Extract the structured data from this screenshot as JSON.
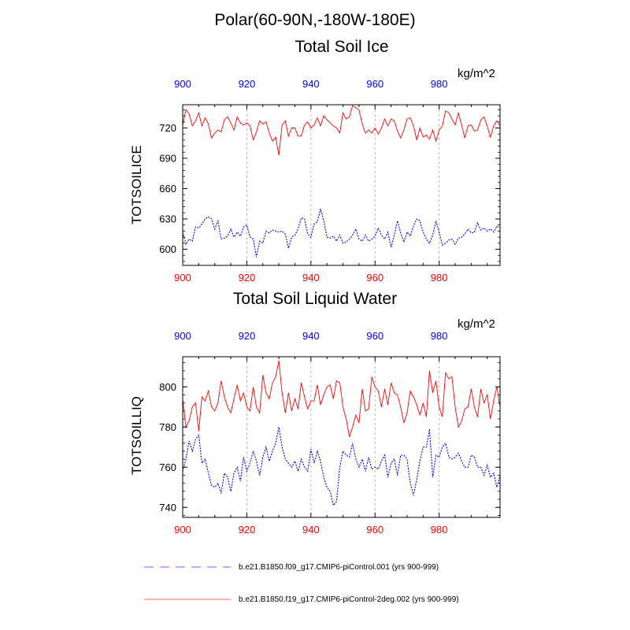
{
  "figure_title": "Polar(60-90N,-180W-180E)",
  "legend": [
    {
      "label": "b.e21.B1850.f09_g17.CMIP6-piControl.001 (yrs 900-999)",
      "color": "#0000ff",
      "style": "dashed"
    },
    {
      "label": "b.e21.B1850.f19_g17.CMIP6-piControl-2deg.002 (yrs 900-999)",
      "color": "#ff0000",
      "style": "solid"
    }
  ],
  "chart_data": [
    {
      "type": "line",
      "title": "Total Soil Ice",
      "units": "kg/m^2",
      "ylabel": "TOTSOILICE",
      "xlabel": "",
      "xlim": [
        900,
        999
      ],
      "ylim": [
        584,
        743
      ],
      "x_ticks": [
        "900",
        "920",
        "940",
        "960",
        "980"
      ],
      "y_ticks": [
        "600",
        "630",
        "660",
        "690",
        "720"
      ],
      "x_tick_color_bottom": "#ff0000",
      "x_tick_color_top": "#0000ff",
      "x_start": 900,
      "series": [
        {
          "name": "b.e21.B1850.f09_g17.CMIP6-piControl.001",
          "color": "#0000ff",
          "style": "dashed",
          "values": [
            617,
            605,
            610,
            608,
            622,
            621,
            625,
            630,
            632,
            630,
            620,
            628,
            610,
            611,
            613,
            620,
            612,
            617,
            613,
            622,
            624,
            612,
            610,
            592,
            608,
            606,
            618,
            616,
            619,
            618,
            617,
            618,
            615,
            601,
            612,
            614,
            620,
            631,
            630,
            615,
            612,
            625,
            627,
            640,
            628,
            612,
            611,
            613,
            608,
            614,
            606,
            607,
            610,
            614,
            620,
            610,
            608,
            614,
            608,
            610,
            613,
            621,
            614,
            610,
            617,
            602,
            614,
            628,
            616,
            607,
            617,
            613,
            623,
            630,
            628,
            617,
            610,
            606,
            614,
            628,
            617,
            604,
            606,
            609,
            610,
            605,
            611,
            612,
            615,
            620,
            616,
            617,
            626,
            619,
            621,
            618,
            620,
            617,
            623,
            621
          ]
        },
        {
          "name": "b.e21.B1850.f19_g17.CMIP6-piControl-2deg.002",
          "color": "#ff0000",
          "style": "solid",
          "values": [
            723,
            738,
            734,
            722,
            727,
            735,
            722,
            730,
            724,
            710,
            715,
            718,
            716,
            728,
            731,
            725,
            718,
            731,
            725,
            723,
            725,
            722,
            708,
            716,
            727,
            724,
            726,
            715,
            707,
            711,
            693,
            723,
            727,
            712,
            720,
            720,
            712,
            712,
            723,
            726,
            720,
            723,
            730,
            722,
            732,
            728,
            725,
            722,
            720,
            715,
            735,
            729,
            731,
            742,
            740,
            738,
            724,
            715,
            718,
            715,
            720,
            714,
            720,
            729,
            722,
            729,
            727,
            717,
            710,
            718,
            729,
            730,
            722,
            708,
            720,
            711,
            713,
            709,
            718,
            707,
            718,
            722,
            737,
            735,
            729,
            723,
            735,
            723,
            710,
            722,
            723,
            717,
            718,
            728,
            731,
            722,
            711,
            722,
            727,
            722
          ]
        }
      ]
    },
    {
      "type": "line",
      "title": "Total Soil Liquid Water",
      "units": "kg/m^2",
      "ylabel": "TOTSOILLIQ",
      "xlabel": "",
      "xlim": [
        900,
        999
      ],
      "ylim": [
        735,
        815
      ],
      "x_ticks": [
        "900",
        "920",
        "940",
        "960",
        "980"
      ],
      "y_ticks": [
        "740",
        "760",
        "780",
        "800"
      ],
      "x_tick_color_bottom": "#ff0000",
      "x_tick_color_top": "#0000ff",
      "x_start": 900,
      "series": [
        {
          "name": "b.e21.B1850.f09_g17.CMIP6-piControl.001",
          "color": "#0000ff",
          "style": "dashed",
          "values": [
            758,
            764,
            773,
            768,
            774,
            776,
            762,
            764,
            757,
            751,
            750,
            752,
            747,
            757,
            755,
            748,
            757,
            760,
            753,
            765,
            758,
            762,
            768,
            763,
            756,
            765,
            770,
            763,
            768,
            772,
            780,
            770,
            764,
            762,
            760,
            763,
            758,
            764,
            760,
            758,
            769,
            762,
            768,
            763,
            755,
            750,
            748,
            741,
            743,
            760,
            768,
            766,
            765,
            772,
            764,
            760,
            764,
            758,
            765,
            759,
            760,
            759,
            763,
            766,
            755,
            762,
            764,
            756,
            766,
            766,
            764,
            752,
            746,
            754,
            763,
            770,
            770,
            779,
            755,
            766,
            765,
            770,
            772,
            765,
            764,
            765,
            767,
            763,
            760,
            760,
            766,
            765,
            760,
            760,
            756,
            761,
            755,
            757,
            750,
            756
          ]
        },
        {
          "name": "b.e21.B1850.f19_g17.CMIP6-piControl-2deg.002",
          "color": "#ff0000",
          "style": "solid",
          "values": [
            794,
            780,
            783,
            790,
            792,
            778,
            795,
            793,
            798,
            790,
            788,
            792,
            803,
            795,
            790,
            787,
            794,
            801,
            793,
            797,
            790,
            788,
            800,
            790,
            787,
            806,
            797,
            794,
            802,
            805,
            813,
            797,
            787,
            797,
            788,
            794,
            789,
            802,
            795,
            789,
            793,
            793,
            801,
            791,
            796,
            800,
            801,
            794,
            803,
            802,
            790,
            784,
            775,
            780,
            786,
            782,
            799,
            788,
            789,
            805,
            800,
            798,
            790,
            799,
            791,
            802,
            797,
            796,
            790,
            782,
            787,
            798,
            795,
            791,
            786,
            792,
            785,
            808,
            797,
            803,
            790,
            785,
            807,
            804,
            805,
            790,
            780,
            783,
            789,
            790,
            799,
            790,
            785,
            799,
            792,
            796,
            784,
            793,
            800,
            790
          ]
        }
      ]
    }
  ]
}
